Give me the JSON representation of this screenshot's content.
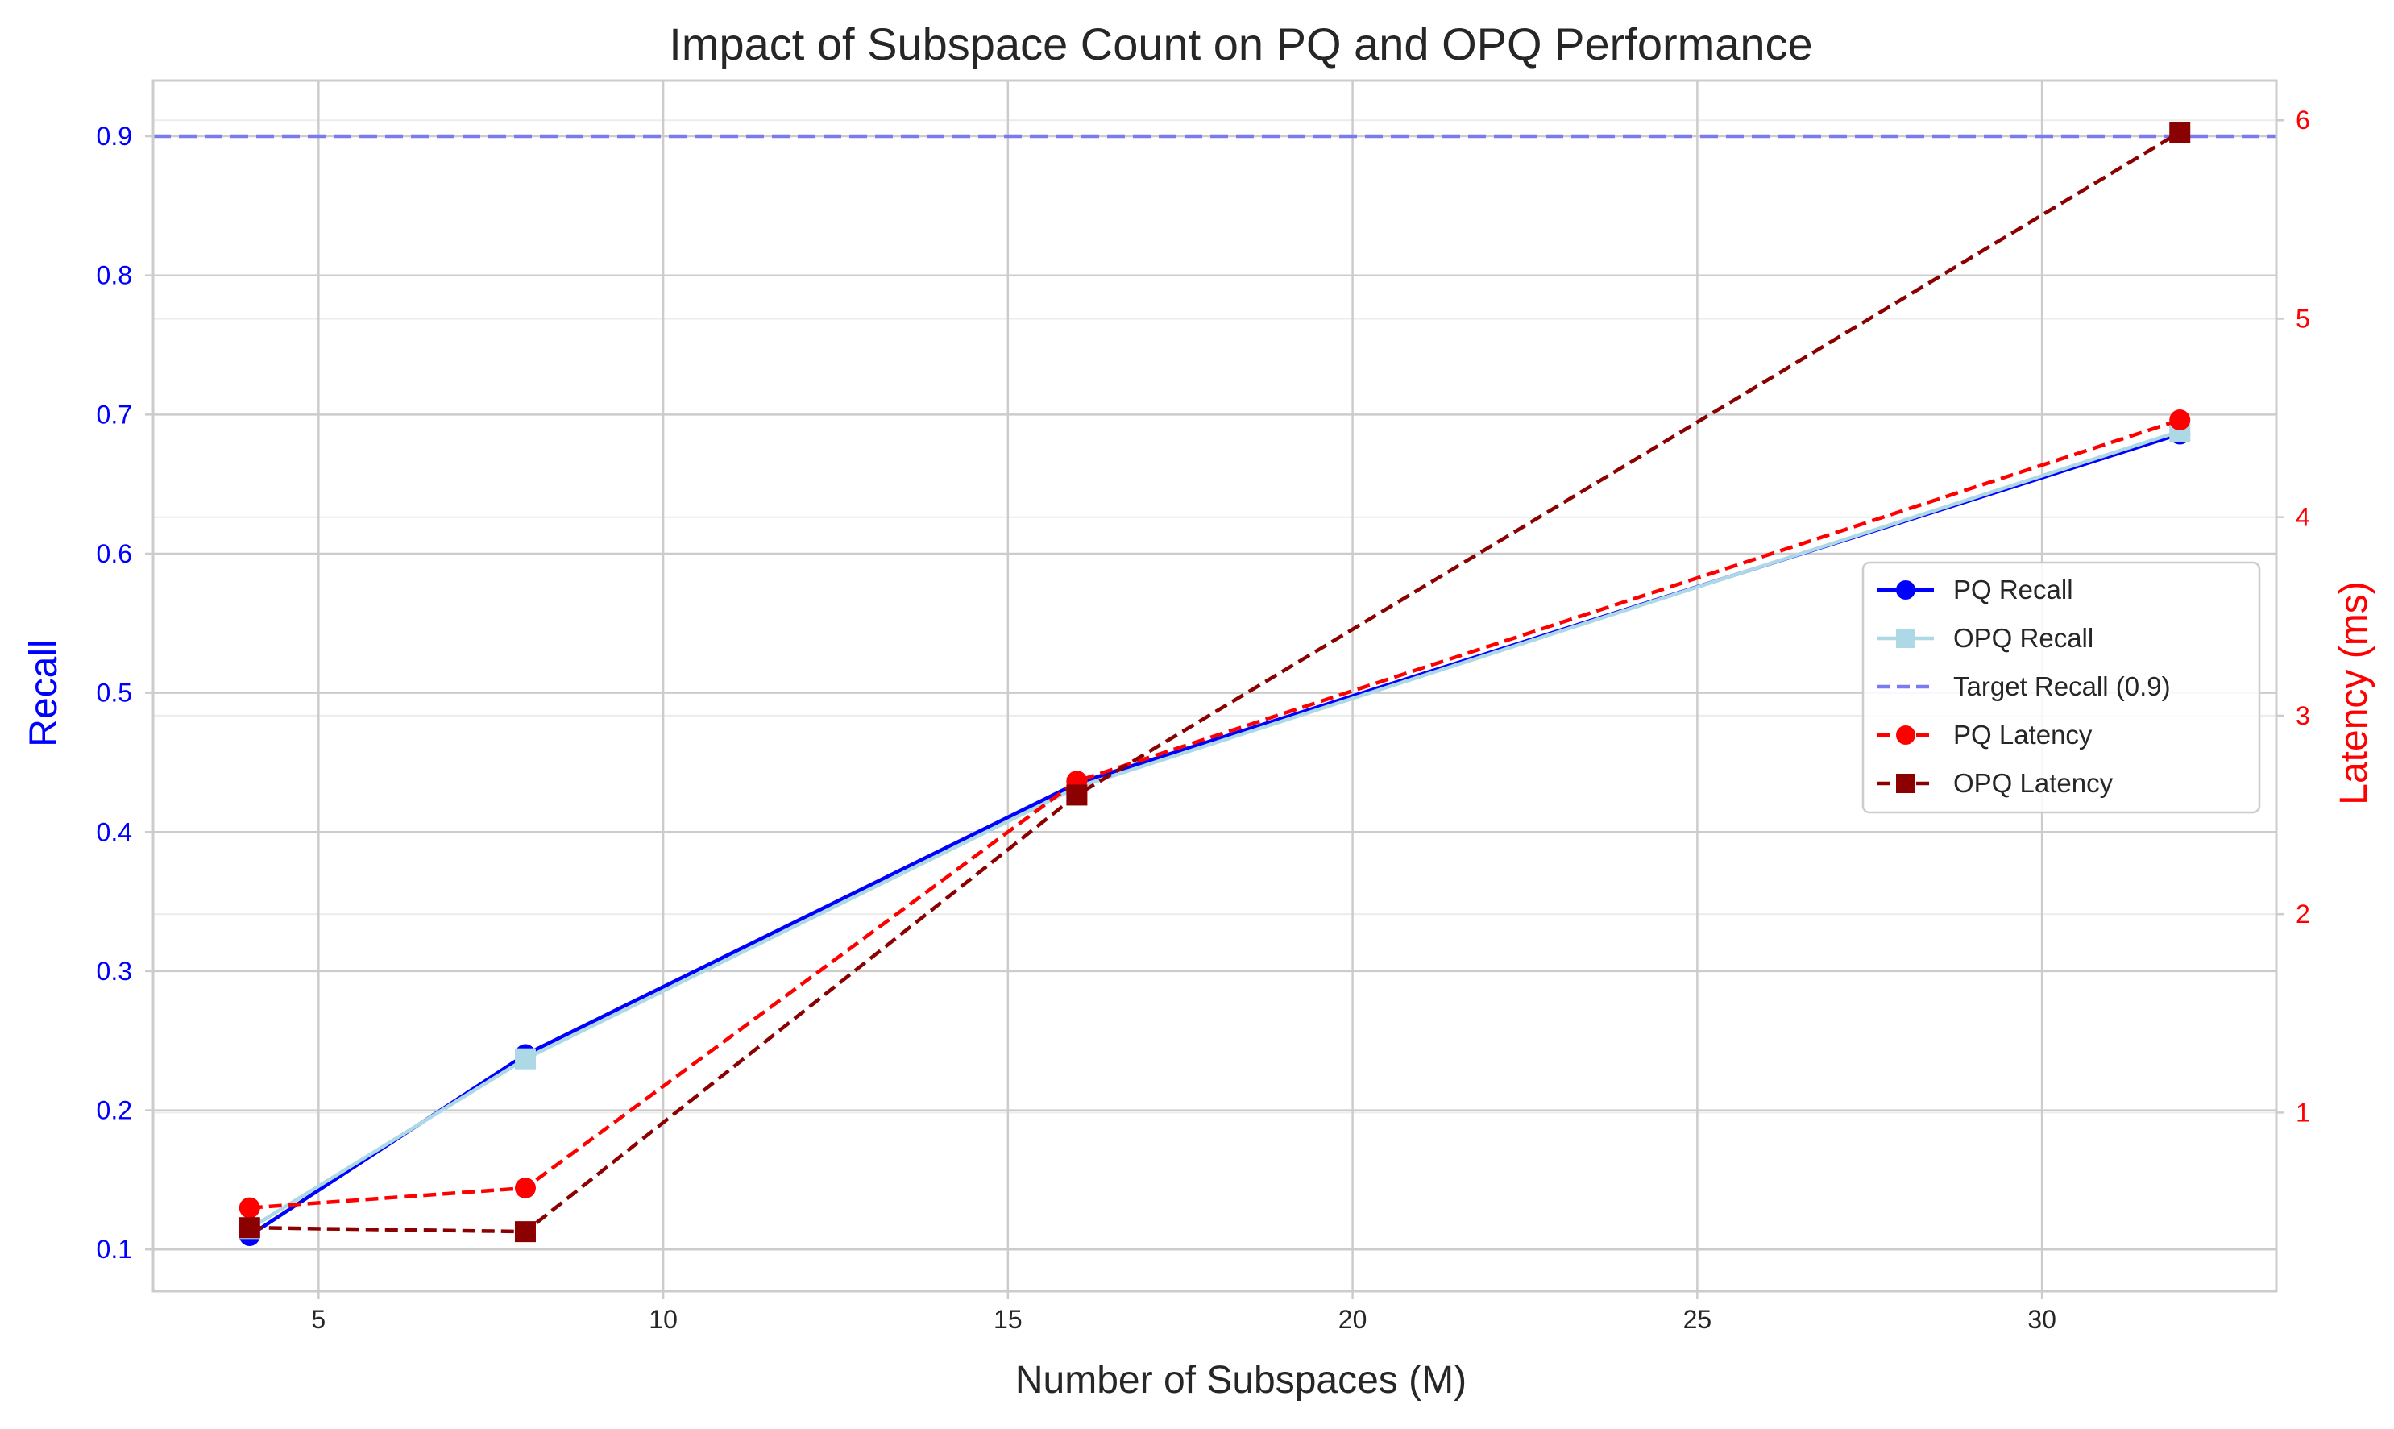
{
  "chart_data": {
    "type": "line",
    "title": "Impact of Subspace Count on PQ and OPQ Performance",
    "xlabel": "Number of Subspaces (M)",
    "ylabel": "Recall",
    "y2label": "Latency (ms)",
    "x": [
      4,
      8,
      16,
      32
    ],
    "xlim": [
      2.6,
      33.4
    ],
    "ylim": [
      0.07,
      0.94
    ],
    "y2lim": [
      0.1,
      6.2
    ],
    "xticks": [
      5,
      10,
      15,
      20,
      25,
      30
    ],
    "yticks": [
      0.1,
      0.2,
      0.3,
      0.4,
      0.5,
      0.6,
      0.7,
      0.8,
      0.9
    ],
    "y2ticks": [
      1,
      2,
      3,
      4,
      5,
      6
    ],
    "grid": true,
    "legend_position": "center-right",
    "series": [
      {
        "name": "PQ Recall",
        "axis": "left",
        "values": [
          0.11,
          0.24,
          0.435,
          0.686
        ],
        "color": "#0000ff",
        "linestyle": "solid",
        "marker": "circle"
      },
      {
        "name": "OPQ Recall",
        "axis": "left",
        "values": [
          0.115,
          0.237,
          0.432,
          0.688
        ],
        "color": "#add8e6",
        "linestyle": "solid",
        "marker": "square"
      },
      {
        "name": "PQ Latency",
        "axis": "right",
        "values": [
          0.52,
          0.62,
          2.67,
          4.49
        ],
        "color": "#ff0000",
        "linestyle": "dashed",
        "marker": "circle"
      },
      {
        "name": "OPQ Latency",
        "axis": "right",
        "values": [
          0.42,
          0.4,
          2.6,
          5.94
        ],
        "color": "#8b0000",
        "linestyle": "dashed",
        "marker": "square"
      }
    ],
    "reference_lines": [
      {
        "name": "Target Recall (0.9)",
        "axis": "left",
        "value": 0.9,
        "color": "#7b7bf0",
        "linestyle": "dashed"
      }
    ],
    "legend": [
      {
        "label": "PQ Recall",
        "color": "#0000ff",
        "linestyle": "solid",
        "marker": "circle"
      },
      {
        "label": "OPQ Recall",
        "color": "#add8e6",
        "linestyle": "solid",
        "marker": "square"
      },
      {
        "label": "Target Recall (0.9)",
        "color": "#7b7bf0",
        "linestyle": "dashed",
        "marker": "none"
      },
      {
        "label": "PQ Latency",
        "color": "#ff0000",
        "linestyle": "dashed",
        "marker": "circle"
      },
      {
        "label": "OPQ Latency",
        "color": "#8b0000",
        "linestyle": "dashed",
        "marker": "square"
      }
    ],
    "colors": {
      "left_axis": "#0000ff",
      "right_axis": "#ff0000",
      "text": "#262626",
      "grid": "#cccccc",
      "grid_minor": "#ececec"
    }
  }
}
